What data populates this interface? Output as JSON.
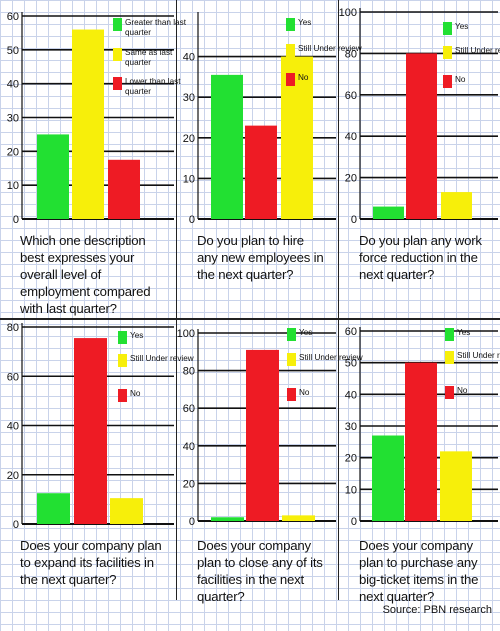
{
  "colors": {
    "green": "#22e032",
    "yellow": "#f7ef0a",
    "red": "#ee1b24"
  },
  "source": "Source: PBN research",
  "chart_data": [
    {
      "type": "bar",
      "question": "Which one description best expresses your overall level of employment compared with last quarter?",
      "categories": [
        "Greater than last quarter",
        "Same as last quarter",
        "Lower than last quarter"
      ],
      "values": [
        25,
        56,
        17.5
      ],
      "ylim": [
        0,
        60
      ],
      "yticks": [
        0,
        10,
        20,
        30,
        40,
        50,
        60
      ]
    },
    {
      "type": "bar",
      "question": "Do you plan to hire any new employees in the next quarter?",
      "categories": [
        "Yes",
        "Still Under review",
        "No"
      ],
      "values": [
        35.5,
        40,
        23
      ],
      "ylim": [
        0,
        50
      ],
      "yticks": [
        0,
        10,
        20,
        30,
        40
      ]
    },
    {
      "type": "bar",
      "question": "Do you plan any work force reduction in the next quarter?",
      "categories": [
        "Yes",
        "Still Under review",
        "No"
      ],
      "values": [
        6,
        13,
        80
      ],
      "ylim": [
        0,
        100
      ],
      "yticks": [
        0,
        20,
        40,
        60,
        80,
        100
      ]
    },
    {
      "type": "bar",
      "question": "Does your company plan to expand its facilities in the next quarter?",
      "categories": [
        "Yes",
        "Still Under review",
        "No"
      ],
      "values": [
        12.5,
        10.5,
        75.5
      ],
      "ylim": [
        0,
        80
      ],
      "yticks": [
        0,
        20,
        40,
        60,
        80
      ]
    },
    {
      "type": "bar",
      "question": "Does your company plan to close any of its facilities in the next quarter?",
      "categories": [
        "Yes",
        "Still Under review",
        "No"
      ],
      "values": [
        2,
        3,
        91
      ],
      "ylim": [
        0,
        100
      ],
      "yticks": [
        0,
        20,
        40,
        60,
        80,
        100
      ]
    },
    {
      "type": "bar",
      "question": "Does your company plan to purchase any big-ticket items in the next quarter?",
      "categories": [
        "Yes",
        "Still Under review",
        "No"
      ],
      "values": [
        27,
        22,
        50
      ],
      "ylim": [
        0,
        60
      ],
      "yticks": [
        0,
        10,
        20,
        30,
        40,
        50,
        60
      ]
    }
  ]
}
